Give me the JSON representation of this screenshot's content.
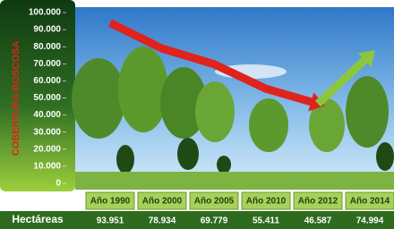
{
  "chart_data": {
    "type": "line",
    "ylabel": "COBERTURA BOSCOSA",
    "categories": [
      "Año 1990",
      "Año 2000",
      "Año 2005",
      "Año 2010",
      "Año 2012",
      "Año 2014"
    ],
    "row_label": "Hectáreas",
    "values": [
      93951,
      78934,
      69779,
      55411,
      46587,
      74994
    ],
    "value_labels": [
      "93.951",
      "78.934",
      "69.779",
      "55.411",
      "46.587",
      "74.994"
    ],
    "colors": {
      "decline": "#e0231c",
      "rise": "#8cc63f"
    },
    "ylim": [
      0,
      100000
    ],
    "yticks": [
      0,
      {
        "value": 10000,
        "label": "10.000"
      },
      {
        "value": 20000,
        "label": "20.000"
      },
      {
        "value": 30000,
        "label": "30.000"
      },
      {
        "value": 40000,
        "label": "40.000"
      },
      {
        "value": 50000,
        "label": "50.000"
      },
      {
        "value": 60000,
        "label": "60.000"
      },
      {
        "value": 70000,
        "label": "70.000"
      },
      {
        "value": 80000,
        "label": "80.000"
      },
      {
        "value": 90000,
        "label": "90.000"
      },
      {
        "value": 100000,
        "label": "100.000"
      }
    ]
  }
}
